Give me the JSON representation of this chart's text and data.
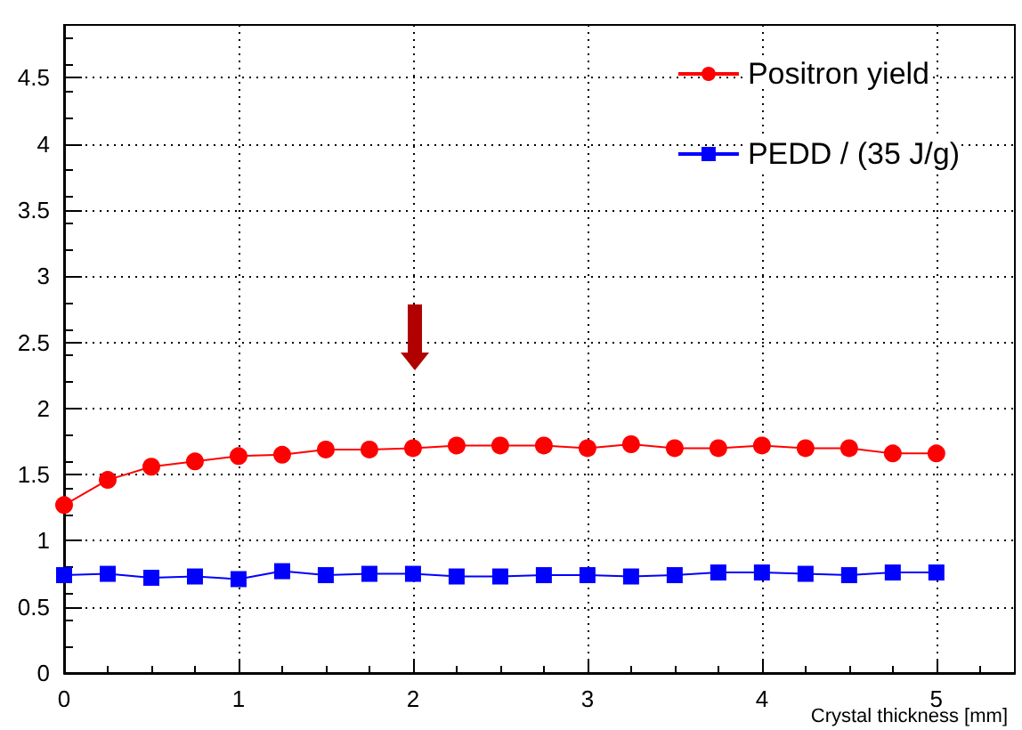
{
  "chart_data": {
    "type": "line",
    "xlabel": "Crystal thickness [mm]",
    "x": [
      0,
      0.25,
      0.5,
      0.75,
      1,
      1.25,
      1.5,
      1.75,
      2,
      2.25,
      2.5,
      2.75,
      3,
      3.25,
      3.5,
      3.75,
      4,
      4.25,
      4.5,
      4.75,
      5
    ],
    "series": [
      {
        "name": "Positron yield",
        "color": "#ff0000",
        "marker": "circle",
        "values": [
          1.27,
          1.46,
          1.56,
          1.6,
          1.64,
          1.65,
          1.69,
          1.69,
          1.7,
          1.72,
          1.72,
          1.72,
          1.7,
          1.73,
          1.7,
          1.7,
          1.72,
          1.7,
          1.7,
          1.66,
          1.66
        ]
      },
      {
        "name": "PEDD / (35 J/g)",
        "color": "#0000ff",
        "marker": "square",
        "values": [
          0.74,
          0.75,
          0.72,
          0.73,
          0.71,
          0.77,
          0.74,
          0.75,
          0.75,
          0.73,
          0.73,
          0.74,
          0.74,
          0.73,
          0.74,
          0.76,
          0.76,
          0.75,
          0.74,
          0.76,
          0.76
        ]
      }
    ],
    "xlim": [
      0,
      5.45
    ],
    "xticks": [
      0,
      1,
      2,
      3,
      4,
      5
    ],
    "ylim": [
      0,
      4.9
    ],
    "yticks": [
      0,
      0.5,
      1,
      1.5,
      2,
      2.5,
      3,
      3.5,
      4,
      4.5
    ],
    "grid": true,
    "legend": "top right"
  }
}
